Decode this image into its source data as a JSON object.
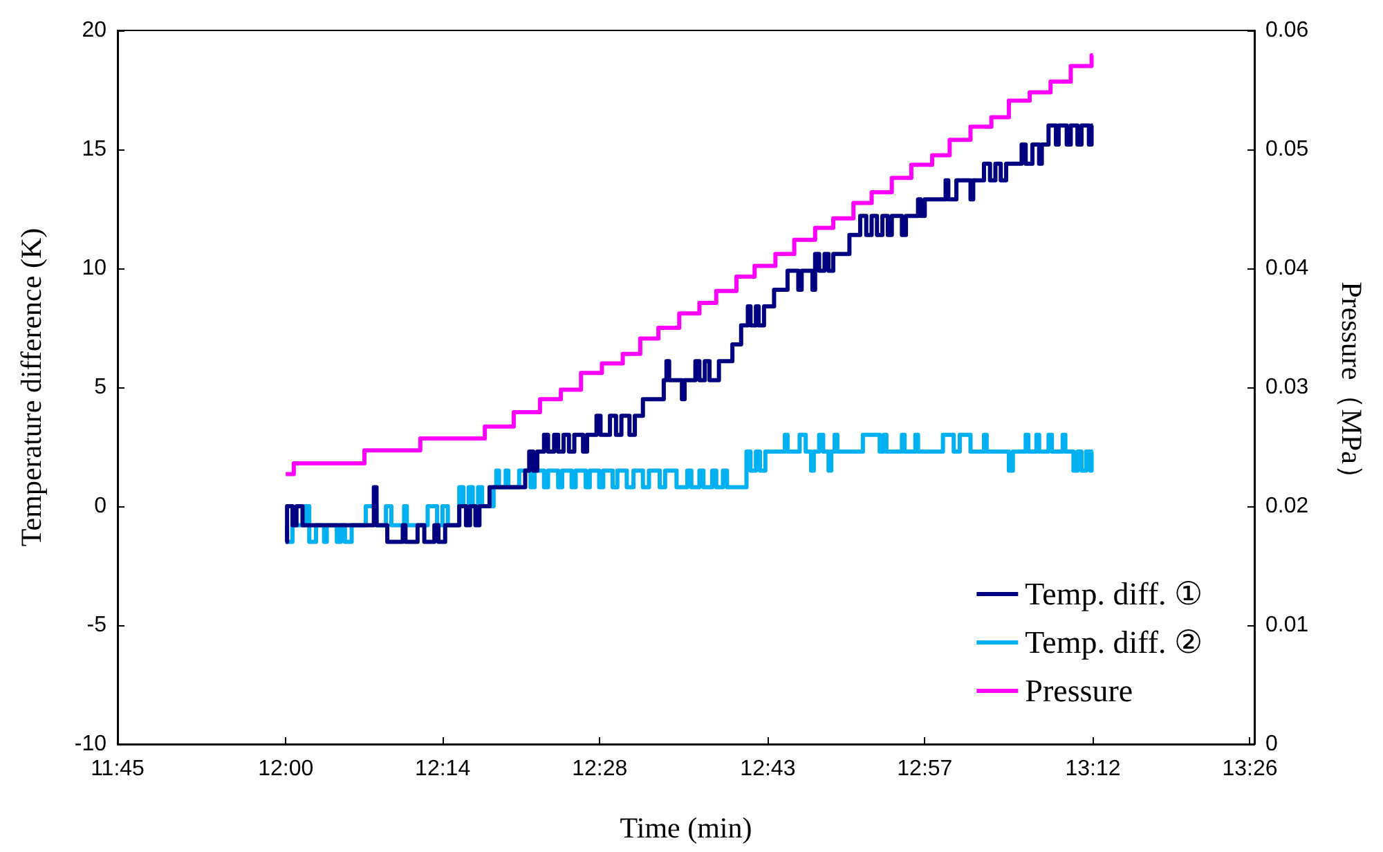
{
  "chart_data": {
    "type": "step",
    "xlabel": "Time (min)",
    "ylabel": "Temperature difference (K)",
    "y2label": "Pressure（MPa）",
    "xlim": [
      11.75,
      13.44
    ],
    "xticks": [
      {
        "value": 11.75,
        "label": "11:45"
      },
      {
        "value": 12,
        "label": "12:00"
      },
      {
        "value": 12.2333,
        "label": "12:14"
      },
      {
        "value": 12.4667,
        "label": "12:28"
      },
      {
        "value": 12.7167,
        "label": "12:43"
      },
      {
        "value": 12.95,
        "label": "12:57"
      },
      {
        "value": 13.2,
        "label": "13:12"
      },
      {
        "value": 13.4333,
        "label": "13:26"
      }
    ],
    "ylim": [
      -10,
      20
    ],
    "yticks": [
      -10,
      -5,
      0,
      5,
      10,
      15,
      20
    ],
    "y2lim": [
      0,
      0.06
    ],
    "y2ticks": [
      0,
      0.01,
      0.02,
      0.03,
      0.04,
      0.05,
      0.06
    ],
    "grid": false,
    "legend": "bottom right",
    "marker": "none",
    "line_style": "solid",
    "series": [
      {
        "name": "Temp. diff. ①",
        "color": "#000080",
        "x": [
          12.0,
          12.002,
          12.01,
          12.016,
          12.025,
          12.131,
          12.135,
          12.151,
          12.174,
          12.178,
          12.196,
          12.206,
          12.221,
          12.227,
          12.237,
          12.258,
          12.268,
          12.274,
          12.282,
          12.288,
          12.303,
          12.356,
          12.362,
          12.368,
          12.374,
          12.384,
          12.39,
          12.399,
          12.405,
          12.413,
          12.421,
          12.429,
          12.442,
          12.448,
          12.462,
          12.468,
          12.482,
          12.491,
          12.499,
          12.511,
          12.519,
          12.531,
          12.562,
          12.566,
          12.57,
          12.589,
          12.593,
          12.609,
          12.615,
          12.623,
          12.63,
          12.644,
          12.664,
          12.677,
          12.687,
          12.691,
          12.699,
          12.703,
          12.711,
          12.726,
          12.746,
          12.762,
          12.767,
          12.783,
          12.787,
          12.793,
          12.801,
          12.807,
          12.814,
          12.824,
          12.838,
          12.854,
          12.863,
          12.871,
          12.879,
          12.887,
          12.895,
          12.901,
          12.916,
          12.922,
          12.94,
          12.944,
          12.95,
          12.981,
          12.985,
          12.997,
          13.018,
          13.022,
          13.038,
          13.047,
          13.055,
          13.063,
          13.071,
          13.094,
          13.1,
          13.11,
          13.12,
          13.124,
          13.134,
          13.145,
          13.149,
          13.161,
          13.167,
          13.177,
          13.183,
          13.194,
          13.198,
          13.2
        ],
        "values": [
          -1.5,
          0,
          -0.8,
          0,
          -0.8,
          0.8,
          -0.8,
          -1.5,
          -0.8,
          -1.5,
          -0.8,
          -1.5,
          -0.8,
          -1.5,
          -0.8,
          0,
          -0.8,
          0,
          -0.8,
          0,
          0.8,
          1.5,
          2.3,
          1.5,
          2.3,
          3.0,
          2.3,
          3.0,
          2.3,
          3.0,
          2.3,
          3.0,
          2.3,
          3.0,
          3.8,
          3.0,
          3.8,
          3.0,
          3.8,
          3.0,
          3.8,
          4.5,
          5.3,
          6.1,
          5.3,
          4.5,
          5.3,
          6.1,
          5.3,
          6.1,
          5.3,
          6.1,
          6.8,
          7.6,
          8.4,
          7.6,
          8.4,
          7.6,
          8.4,
          9.1,
          9.9,
          9.1,
          9.9,
          9.1,
          10.6,
          9.9,
          10.6,
          9.9,
          10.6,
          10.6,
          11.4,
          12.2,
          11.4,
          12.2,
          11.4,
          12.2,
          11.4,
          12.2,
          11.4,
          12.2,
          12.9,
          12.2,
          12.9,
          13.7,
          12.9,
          13.7,
          12.9,
          13.7,
          14.4,
          13.7,
          14.4,
          13.7,
          14.4,
          15.2,
          14.4,
          15.2,
          14.4,
          15.2,
          16.0,
          15.2,
          16.0,
          15.2,
          16.0,
          15.2,
          16.0,
          15.2,
          16.0,
          16.0
        ]
      },
      {
        "name": "Temp. diff. ②",
        "color": "#00b0f0",
        "x": [
          12.0,
          12.002,
          12.01,
          12.029,
          12.035,
          12.045,
          12.057,
          12.061,
          12.076,
          12.082,
          12.088,
          12.098,
          12.119,
          12.135,
          12.149,
          12.157,
          12.176,
          12.18,
          12.211,
          12.225,
          12.233,
          12.241,
          12.258,
          12.264,
          12.272,
          12.278,
          12.286,
          12.292,
          12.309,
          12.313,
          12.317,
          12.327,
          12.331,
          12.347,
          12.364,
          12.37,
          12.384,
          12.39,
          12.405,
          12.411,
          12.425,
          12.431,
          12.446,
          12.452,
          12.466,
          12.472,
          12.486,
          12.493,
          12.507,
          12.517,
          12.531,
          12.54,
          12.556,
          12.564,
          12.581,
          12.597,
          12.603,
          12.615,
          12.621,
          12.634,
          12.64,
          12.65,
          12.656,
          12.685,
          12.691,
          12.699,
          12.705,
          12.713,
          12.742,
          12.746,
          12.764,
          12.773,
          12.781,
          12.785,
          12.793,
          12.799,
          12.807,
          12.811,
          12.816,
          12.82,
          12.858,
          12.883,
          12.889,
          12.893,
          12.916,
          12.92,
          12.936,
          12.94,
          12.977,
          12.993,
          13.002,
          13.018,
          13.038,
          13.042,
          13.075,
          13.081,
          13.1,
          13.104,
          13.116,
          13.12,
          13.134,
          13.139,
          13.155,
          13.159,
          13.171,
          13.177,
          13.183,
          13.19,
          13.196,
          13.198,
          13.2
        ],
        "values": [
          -0.8,
          -1.5,
          -0.8,
          0,
          -1.5,
          -0.8,
          -1.5,
          -0.8,
          -1.5,
          -0.8,
          -1.5,
          -0.8,
          0,
          -0.8,
          0,
          -0.8,
          0,
          -0.8,
          0,
          -0.8,
          0,
          -0.8,
          0.8,
          0,
          0.8,
          0,
          0.8,
          0,
          0.8,
          1.5,
          0.8,
          1.5,
          0.8,
          1.5,
          0.8,
          1.5,
          0.8,
          1.5,
          0.8,
          1.5,
          0.8,
          1.5,
          0.8,
          1.5,
          0.8,
          1.5,
          0.8,
          1.5,
          0.8,
          1.5,
          0.8,
          1.5,
          0.8,
          1.5,
          0.8,
          1.5,
          0.8,
          1.5,
          0.8,
          1.5,
          0.8,
          1.5,
          0.8,
          2.3,
          1.5,
          2.3,
          1.5,
          2.3,
          3.0,
          2.3,
          3.0,
          2.3,
          1.5,
          2.3,
          3.0,
          2.3,
          1.5,
          2.3,
          3.0,
          2.3,
          3.0,
          2.3,
          3.0,
          2.3,
          3.0,
          2.3,
          3.0,
          2.3,
          3.0,
          2.3,
          3.0,
          2.3,
          3.0,
          2.3,
          1.5,
          2.3,
          3.0,
          2.3,
          3.0,
          2.3,
          3.0,
          2.3,
          3.0,
          2.3,
          1.5,
          2.3,
          1.5,
          2.3,
          1.5,
          2.3,
          2.3
        ]
      },
      {
        "name": "Pressure",
        "color": "#ff00ff",
        "axis": "y2",
        "x": [
          12.0,
          12.012,
          12.117,
          12.2,
          12.296,
          12.339,
          12.378,
          12.409,
          12.439,
          12.47,
          12.501,
          12.527,
          12.554,
          12.585,
          12.615,
          12.64,
          12.67,
          12.697,
          12.728,
          12.756,
          12.787,
          12.814,
          12.844,
          12.871,
          12.901,
          12.93,
          12.961,
          12.987,
          13.018,
          13.049,
          13.075,
          13.106,
          13.137,
          13.167,
          13.198,
          13.2
        ],
        "values": [
          0.0227,
          0.0236,
          0.0247,
          0.0257,
          0.0267,
          0.0279,
          0.029,
          0.0298,
          0.0312,
          0.032,
          0.0328,
          0.0341,
          0.035,
          0.0362,
          0.0371,
          0.0381,
          0.0393,
          0.0402,
          0.0412,
          0.0424,
          0.0434,
          0.0442,
          0.0455,
          0.0464,
          0.0476,
          0.0487,
          0.0495,
          0.0508,
          0.0519,
          0.0527,
          0.0541,
          0.0548,
          0.0557,
          0.057,
          0.0579,
          0.0579
        ]
      }
    ]
  }
}
